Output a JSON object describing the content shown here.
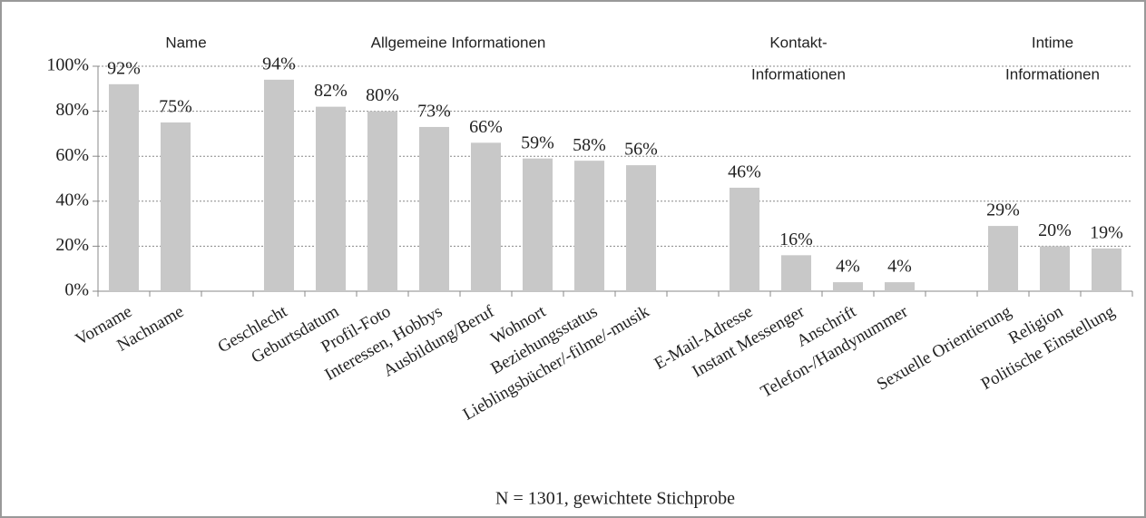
{
  "chart_data": {
    "type": "bar",
    "categories": [
      "Vorname",
      "Nachname",
      null,
      "Geschlecht",
      "Geburtsdatum",
      "Profil-Foto",
      "Interessen, Hobbys",
      "Ausbildung/Beruf",
      "Wohnort",
      "Beziehungsstatus",
      "Lieblingsbücher/-filme/-musik",
      null,
      "E-Mail-Adresse",
      "Instant Messenger",
      "Anschrift",
      "Telefon-/Handynummer",
      null,
      "Sexuelle Orientierung",
      "Religion",
      "Politische Einstellung"
    ],
    "values": [
      92,
      75,
      null,
      94,
      82,
      80,
      73,
      66,
      59,
      58,
      56,
      null,
      46,
      16,
      4,
      4,
      null,
      29,
      20,
      19
    ],
    "value_labels": [
      "92%",
      "75%",
      null,
      "94%",
      "82%",
      "80%",
      "73%",
      "66%",
      "59%",
      "58%",
      "56%",
      null,
      "46%",
      "16%",
      "4%",
      "4%",
      null,
      "29%",
      "20%",
      "19%"
    ],
    "color": "#c8c8c8",
    "ylim": [
      0,
      100
    ],
    "yticks": [
      {
        "value": 0,
        "label": "0%"
      },
      {
        "value": 20,
        "label": "20%"
      },
      {
        "value": 40,
        "label": "40%"
      },
      {
        "value": 60,
        "label": "60%"
      },
      {
        "value": 80,
        "label": "80%"
      },
      {
        "value": 100,
        "label": "100%"
      }
    ],
    "grid": true,
    "annotations": [
      {
        "lines": [
          "Name"
        ]
      },
      {
        "lines": [
          "Allgemeine Informationen"
        ]
      },
      {
        "lines": [
          "Kontakt-",
          "Informationen"
        ]
      },
      {
        "lines": [
          "Intime",
          "Informationen"
        ]
      }
    ],
    "xlabel": "N = 1301, gewichtete Stichprobe"
  }
}
